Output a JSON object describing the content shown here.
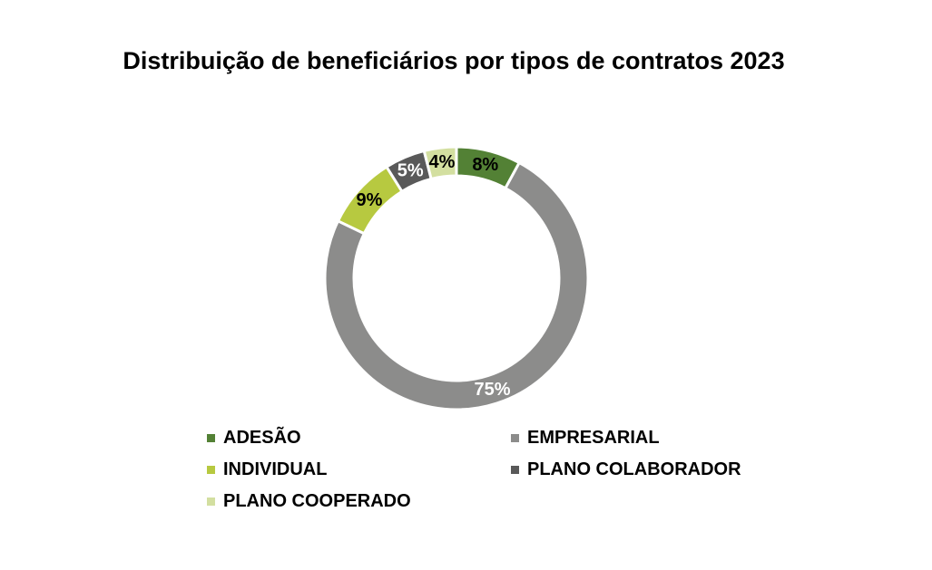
{
  "chart_data": {
    "type": "pie",
    "variant": "donut",
    "title": "Distribuição de beneficiários por tipos de contratos 2023",
    "categories": [
      "ADESÃO",
      "EMPRESARIAL",
      "INDIVIDUAL",
      "PLANO COLABORADOR",
      "PLANO COOPERADO"
    ],
    "values": [
      8,
      75,
      9,
      5,
      4
    ],
    "labels": [
      "8%",
      "75%",
      "9%",
      "5%",
      "4%"
    ],
    "unit": "%",
    "colors": [
      "#538135",
      "#8c8c8b",
      "#b7c940",
      "#595959",
      "#d3dfa0"
    ],
    "label_colors": [
      "#000000",
      "#ffffff",
      "#000000",
      "#ffffff",
      "#000000"
    ],
    "legend_position": "bottom",
    "legend_order": [
      0,
      1,
      2,
      3,
      4
    ]
  }
}
